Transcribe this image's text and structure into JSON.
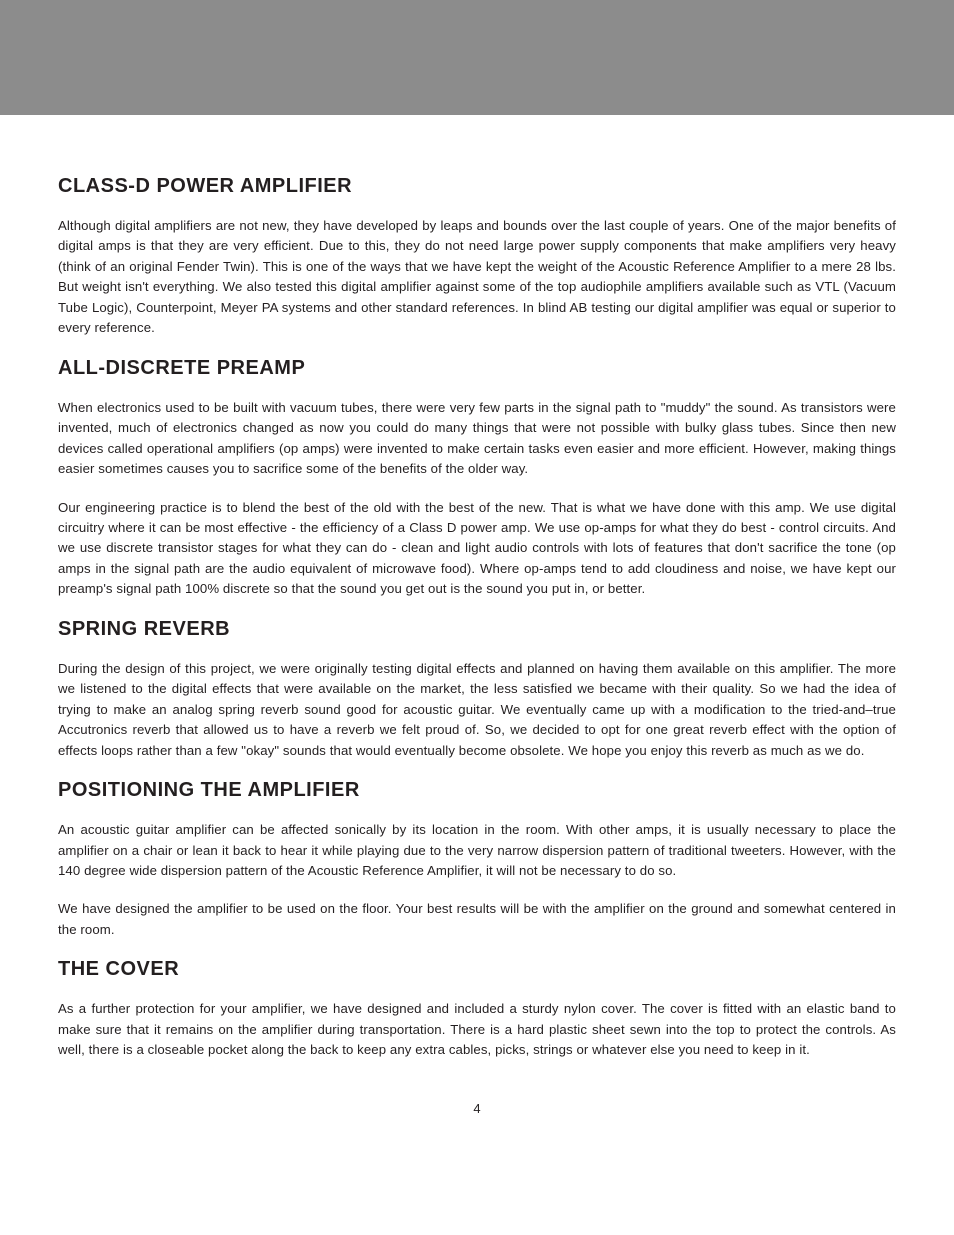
{
  "page_number": "4",
  "sections": [
    {
      "heading": "CLASS-D POWER AMPLIFIER",
      "paragraphs": [
        "Although digital amplifiers are not new, they have developed by leaps and bounds over the last couple of years. One of the major benefits of digital amps is that they are very efficient. Due to this, they do not need large power supply components that make amplifiers very heavy (think of an original Fender Twin).  This is one of the ways that we have kept the weight of the Acoustic Reference Amplifier to a mere 28 lbs.  But weight isn't everything. We also tested this digital amplifier against some of the top audiophile amplifiers available such as VTL (Vacuum Tube Logic), Counterpoint, Meyer PA systems and other standard references. In blind AB testing our digital amplifier was equal or superior to every reference."
      ]
    },
    {
      "heading": "ALL-DISCRETE PREAMP",
      "paragraphs": [
        "When electronics used to be built with vacuum tubes, there were very few parts in the signal path to \"muddy\" the sound. As transistors were invented, much of electronics changed as now you could do many things that were not possible with bulky glass tubes. Since then new devices called operational amplifiers (op amps) were invented to make certain tasks even easier and more efficient. However, making things easier sometimes causes you to sacrifice some of the benefits of the older way.",
        "Our engineering practice is to blend the best of the old with the best of the new. That is what we have done with this amp. We use digital circuitry where it can be most effective - the efficiency of a Class D power amp.  We use op-amps for what they do best - control circuits. And we use discrete transistor stages for what they can do - clean and light audio controls with lots of features that don't sacrifice the tone (op amps in the signal path are the audio equivalent of microwave food). Where op-amps tend to add cloudiness and noise, we have kept our preamp's signal path 100% discrete so that the sound you get out is the sound you put in, or better."
      ]
    },
    {
      "heading": "SPRING REVERB",
      "paragraphs": [
        "During the design of this project, we were originally testing digital effects and planned on having them available on this amplifier. The more we listened to the digital effects that were available on the market, the less satisfied we became with their quality. So we had the idea of trying to make an analog spring reverb sound good for acoustic guitar. We eventually came up with a modification to the tried-and–true Accutronics reverb that allowed us to have a reverb we felt proud of. So, we decided to opt for one great reverb effect with the option of effects loops rather than a few \"okay\" sounds that would eventually become obsolete. We hope you enjoy this reverb as much as we do."
      ]
    },
    {
      "heading": "POSITIONING THE AMPLIFIER",
      "paragraphs": [
        "An acoustic guitar amplifier can be affected sonically by its location in the room. With other amps, it is usually necessary to place the amplifier on a chair or lean it back to hear it while playing due to the very narrow dispersion pattern of traditional tweeters. However, with the 140 degree wide dispersion pattern of the Acoustic Reference Amplifier, it will not be necessary to do so.",
        "We have designed the amplifier to be used on the floor. Your best results will be with the amplifier on the ground and somewhat centered in the room."
      ]
    },
    {
      "heading": "THE COVER",
      "paragraphs": [
        "As a further protection for your amplifier, we have designed and included a sturdy nylon cover. The cover is fitted with an elastic band to make sure that it remains on the amplifier during transportation. There is a hard plastic sheet sewn into the top to protect the controls. As well, there is a closeable pocket along the back to keep any extra cables, picks, strings or whatever else you need to keep in it."
      ]
    }
  ]
}
